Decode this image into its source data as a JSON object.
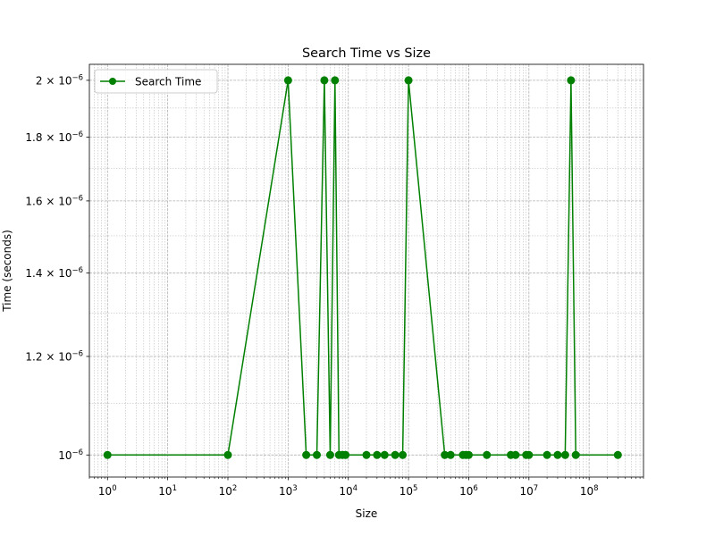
{
  "chart_data": {
    "type": "line",
    "title": "Search Time vs Size",
    "xlabel": "Size",
    "ylabel": "Time (seconds)",
    "x_scale": "log",
    "y_scale": "log",
    "xlim": [
      0.5,
      800000000
    ],
    "ylim": [
      9.6e-07,
      2.06e-06
    ],
    "grid": true,
    "legend": {
      "position": "top-left",
      "entries": [
        "Search Time"
      ]
    },
    "colors": {
      "line": "#008000",
      "grid": "#b0b0b0"
    },
    "x_ticks": [
      {
        "value": 1,
        "base": "10",
        "exp": "0"
      },
      {
        "value": 10,
        "base": "10",
        "exp": "1"
      },
      {
        "value": 100,
        "base": "10",
        "exp": "2"
      },
      {
        "value": 1000,
        "base": "10",
        "exp": "3"
      },
      {
        "value": 10000,
        "base": "10",
        "exp": "4"
      },
      {
        "value": 100000,
        "base": "10",
        "exp": "5"
      },
      {
        "value": 1000000,
        "base": "10",
        "exp": "6"
      },
      {
        "value": 10000000,
        "base": "10",
        "exp": "7"
      },
      {
        "value": 100000000,
        "base": "10",
        "exp": "8"
      }
    ],
    "y_ticks": [
      {
        "value": 1e-06,
        "mant": "",
        "base": "10",
        "exp": "−6"
      },
      {
        "value": 1.2e-06,
        "mant": "1.2 × ",
        "base": "10",
        "exp": "−6"
      },
      {
        "value": 1.4e-06,
        "mant": "1.4 × ",
        "base": "10",
        "exp": "−6"
      },
      {
        "value": 1.6e-06,
        "mant": "1.6 × ",
        "base": "10",
        "exp": "−6"
      },
      {
        "value": 1.8e-06,
        "mant": "1.8 × ",
        "base": "10",
        "exp": "−6"
      },
      {
        "value": 2e-06,
        "mant": "2 × ",
        "base": "10",
        "exp": "−6"
      }
    ],
    "series": [
      {
        "name": "Search Time",
        "x": [
          1,
          100,
          1000,
          2000,
          3000,
          4000,
          5000,
          6000,
          7000,
          8000,
          9000,
          20000,
          30000,
          40000,
          60000,
          80000,
          100000,
          400000,
          500000,
          800000,
          900000,
          1000000,
          2000000,
          5000000,
          6000000,
          9000000,
          10000000,
          20000000,
          30000000,
          40000000,
          50000000,
          60000000,
          300000000
        ],
        "y": [
          1e-06,
          1e-06,
          2e-06,
          1e-06,
          1e-06,
          2e-06,
          1e-06,
          2e-06,
          1e-06,
          1e-06,
          1e-06,
          1e-06,
          1e-06,
          1e-06,
          1e-06,
          1e-06,
          2e-06,
          1e-06,
          1e-06,
          1e-06,
          1e-06,
          1e-06,
          1e-06,
          1e-06,
          1e-06,
          1e-06,
          1e-06,
          1e-06,
          1e-06,
          1e-06,
          2e-06,
          1e-06,
          1e-06
        ]
      }
    ]
  }
}
